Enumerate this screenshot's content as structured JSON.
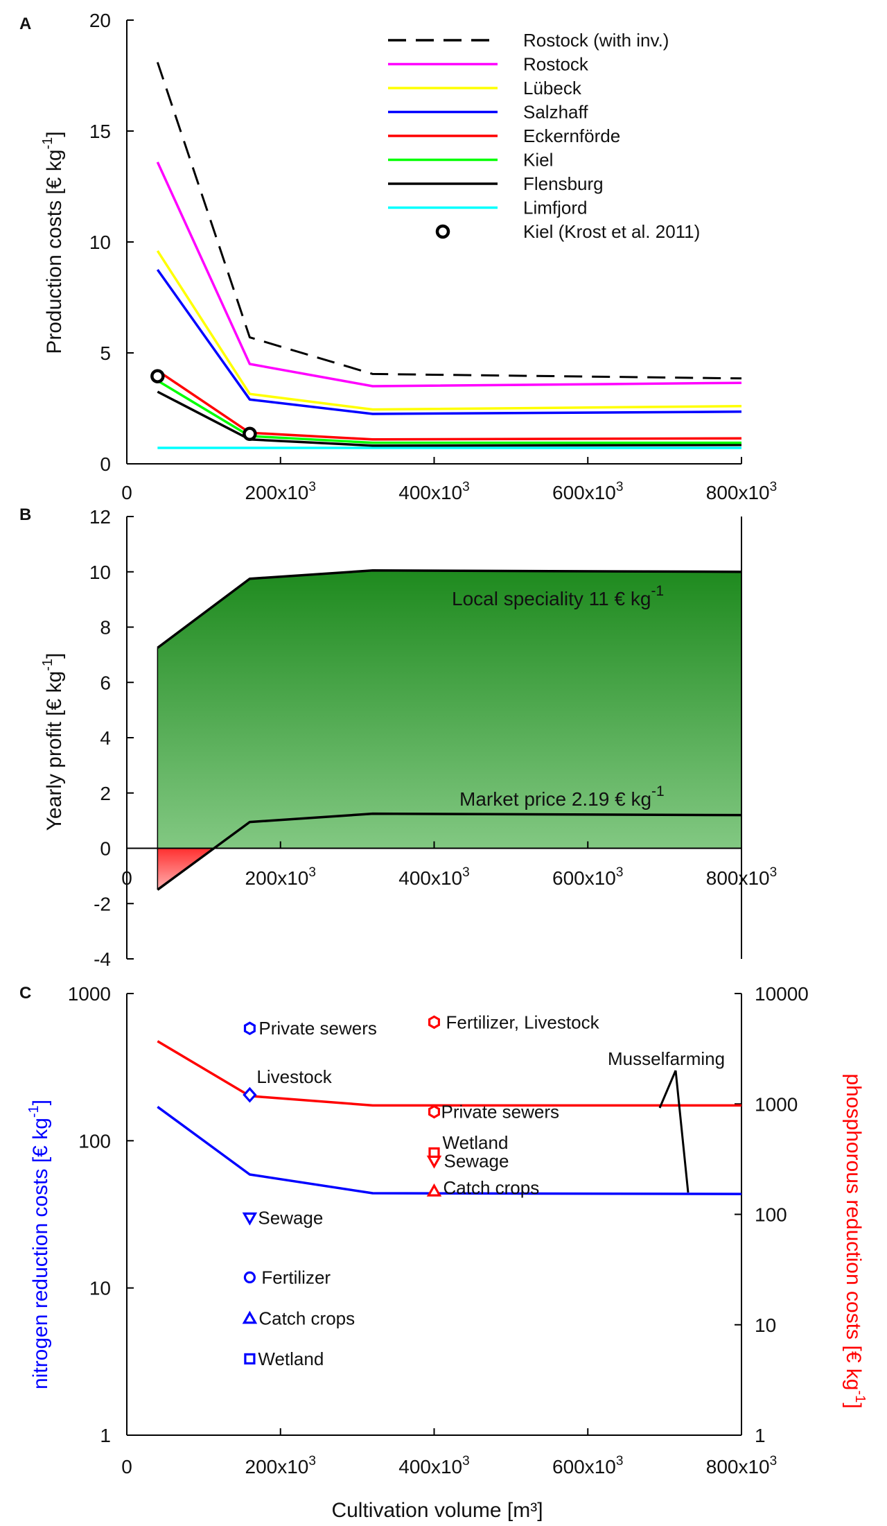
{
  "figure": {
    "x_axis_label": "Cultivation volume [m³]",
    "x_ticks": [
      {
        "value": 0,
        "base": "0",
        "exp": ""
      },
      {
        "value": 200000,
        "base": "200x10",
        "exp": "3"
      },
      {
        "value": 400000,
        "base": "400x10",
        "exp": "3"
      },
      {
        "value": 600000,
        "base": "600x10",
        "exp": "3"
      },
      {
        "value": 800000,
        "base": "800x10",
        "exp": "3"
      }
    ]
  },
  "chart_data": [
    {
      "panel": "A",
      "type": "line",
      "ylabel_main": "Production costs [€ kg",
      "ylabel_exp": "-1",
      "ylabel_end": "]",
      "xlim": [
        0,
        800000
      ],
      "ylim": [
        0,
        20
      ],
      "y_ticks": [
        0,
        5,
        10,
        15,
        20
      ],
      "legend_position": "top-right",
      "series": [
        {
          "name": "Rostock (with inv.)",
          "color": "#000000",
          "dash": true,
          "x": [
            40000,
            160000,
            320000,
            800000
          ],
          "y": [
            18.1,
            5.7,
            4.05,
            3.85
          ]
        },
        {
          "name": "Rostock",
          "color": "#ff00ff",
          "dash": false,
          "x": [
            40000,
            160000,
            320000,
            800000
          ],
          "y": [
            13.6,
            4.5,
            3.5,
            3.65
          ]
        },
        {
          "name": "Lübeck",
          "color": "#ffff00",
          "dash": false,
          "x": [
            40000,
            160000,
            320000,
            800000
          ],
          "y": [
            9.6,
            3.15,
            2.45,
            2.6
          ]
        },
        {
          "name": "Salzhaff",
          "color": "#0000ff",
          "dash": false,
          "x": [
            40000,
            160000,
            320000,
            800000
          ],
          "y": [
            8.75,
            2.9,
            2.25,
            2.35
          ]
        },
        {
          "name": "Eckernförde",
          "color": "#ff0000",
          "dash": false,
          "x": [
            40000,
            160000,
            320000,
            800000
          ],
          "y": [
            4.2,
            1.4,
            1.1,
            1.15
          ]
        },
        {
          "name": "Kiel",
          "color": "#00ff00",
          "dash": false,
          "x": [
            40000,
            160000,
            320000,
            800000
          ],
          "y": [
            3.75,
            1.25,
            0.95,
            0.95
          ]
        },
        {
          "name": "Flensburg",
          "color": "#000000",
          "dash": false,
          "x": [
            40000,
            160000,
            320000,
            800000
          ],
          "y": [
            3.25,
            1.1,
            0.82,
            0.85
          ]
        },
        {
          "name": "Limfjord",
          "color": "#00ffff",
          "dash": false,
          "x": [
            40000,
            160000,
            320000,
            800000
          ],
          "y": [
            0.72,
            0.72,
            0.72,
            0.72
          ]
        }
      ],
      "points": {
        "name": "Kiel (Krost et al. 2011)",
        "x": [
          40000,
          160000
        ],
        "y": [
          3.95,
          1.35
        ]
      }
    },
    {
      "panel": "B",
      "type": "area",
      "ylabel_main": "Yearly profit [€ kg",
      "ylabel_exp": "-1",
      "ylabel_end": "]",
      "xlim": [
        0,
        800000
      ],
      "ylim": [
        -4,
        12
      ],
      "y_ticks": [
        -4,
        -2,
        0,
        2,
        4,
        6,
        8,
        10,
        12
      ],
      "series": [
        {
          "name": "Local speciality",
          "x": [
            40000,
            160000,
            320000,
            800000
          ],
          "y": [
            7.25,
            9.75,
            10.05,
            10.0
          ]
        },
        {
          "name": "Market price",
          "x": [
            40000,
            160000,
            320000,
            800000
          ],
          "y": [
            -1.5,
            0.95,
            1.25,
            1.2
          ]
        }
      ],
      "annotations": {
        "local_main": "Local speciality 11 € kg",
        "local_exp": "-1",
        "market_main": "Market price 2.19 € kg",
        "market_exp": "-1"
      },
      "colors": {
        "profit_top": "#1e8a1e",
        "profit_bottom": "#82c882",
        "loss_top": "#ff3030",
        "loss_bottom": "#ffb0b0"
      }
    },
    {
      "panel": "C",
      "type": "line",
      "ylabel_left_main": "nitrogen reduction costs [€ kg",
      "ylabel_left_exp": "-1",
      "ylabel_left_end": "]",
      "ylabel_right_main": "phosphorous reduction costs [€ kg",
      "ylabel_right_exp": "-1",
      "ylabel_right_end": "]",
      "yscale": "log",
      "xlim": [
        0,
        800000
      ],
      "ylim_left": [
        1,
        1000
      ],
      "ylim_right": [
        1,
        10000
      ],
      "y_ticks_left": [
        "1",
        "10",
        "100",
        "1000"
      ],
      "y_ticks_right": [
        "1",
        "10",
        "100",
        "1000",
        "10000"
      ],
      "colors": {
        "nitrogen": "#0000ff",
        "phosphorus": "#ff0000"
      },
      "series": [
        {
          "name": "nitrogen",
          "axis": "left",
          "color": "#0000ff",
          "x": [
            40000,
            160000,
            320000,
            800000
          ],
          "y": [
            170,
            59,
            44,
            43.5
          ]
        },
        {
          "name": "phosphorus",
          "axis": "right",
          "color": "#ff0000",
          "x": [
            40000,
            160000,
            320000,
            800000
          ],
          "y": [
            3700,
            1180,
            970,
            970
          ]
        }
      ],
      "nitrogen_points": [
        {
          "label": "Private sewers",
          "marker": "hexagon",
          "x": 160000,
          "y": 580
        },
        {
          "label": "Livestock",
          "marker": "diamond",
          "x": 160000,
          "y": 205
        },
        {
          "label": "Sewage",
          "marker": "triangle-down",
          "x": 160000,
          "y": 30
        },
        {
          "label": "Fertilizer",
          "marker": "circle",
          "x": 160000,
          "y": 11.8
        },
        {
          "label": "Catch crops",
          "marker": "triangle-up",
          "x": 160000,
          "y": 6.2
        },
        {
          "label": "Wetland",
          "marker": "square",
          "x": 160000,
          "y": 3.3
        }
      ],
      "phosphorus_points": [
        {
          "label": "Fertilizer, Livestock",
          "marker": "hexagon",
          "x": 400000,
          "y": 5500
        },
        {
          "label": "Private sewers",
          "marker": "hexagon",
          "x": 400000,
          "y": 850
        },
        {
          "label": "Wetland",
          "marker": "square",
          "x": 400000,
          "y": 360
        },
        {
          "label": "Sewage",
          "marker": "triangle-down",
          "x": 400000,
          "y": 305
        },
        {
          "label": "Catch crops",
          "marker": "triangle-up",
          "x": 400000,
          "y": 162
        }
      ],
      "annotation": "Musselfarming"
    }
  ]
}
